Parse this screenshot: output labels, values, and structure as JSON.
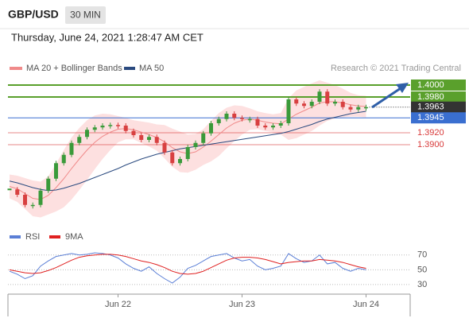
{
  "header": {
    "symbol": "GBP/USD",
    "interval": "30 MIN",
    "datetime": "Thursday, June 24, 2021 1:28:47 AM CET",
    "credit": "Research © 2021 Trading Central"
  },
  "chart_data": {
    "type": "candlestick",
    "categories": [
      null,
      null,
      null,
      null,
      null,
      null,
      null,
      null,
      null,
      null,
      null,
      null,
      null,
      null,
      "Jun 22",
      null,
      null,
      null,
      null,
      null,
      null,
      null,
      null,
      null,
      null,
      null,
      null,
      null,
      null,
      null,
      "Jun 23",
      null,
      null,
      null,
      null,
      null,
      null,
      null,
      null,
      null,
      null,
      null,
      null,
      null,
      null,
      null,
      "Jun 24"
    ],
    "price": {
      "up_color": "#3a9a3a",
      "down_color": "#d84040",
      "values": [
        1.3825,
        1.3816,
        1.3799,
        1.3799,
        1.3823,
        1.3843,
        1.3869,
        1.3883,
        1.3903,
        1.3913,
        1.3925,
        1.3929,
        1.3932,
        1.3933,
        1.3932,
        1.3923,
        1.3916,
        1.3908,
        1.3913,
        1.3903,
        1.3887,
        1.3869,
        1.3876,
        1.3896,
        1.3903,
        1.3919,
        1.3936,
        1.3943,
        1.3952,
        1.3945,
        1.3943,
        1.3943,
        1.3932,
        1.3929,
        1.3932,
        1.3936,
        1.3976,
        1.3969,
        1.3965,
        1.3972,
        1.3989,
        1.3969,
        1.3972,
        1.3963,
        1.3959,
        1.3963,
        1.3963
      ]
    },
    "series": [
      {
        "name": "MA 20 + Bollinger Bands",
        "color": "#f08a8a",
        "band_color": "#fde0e0",
        "values": [
          1.383,
          1.3826,
          1.3818,
          1.381,
          1.3808,
          1.3815,
          1.3828,
          1.3843,
          1.386,
          1.3876,
          1.3891,
          1.3904,
          1.3914,
          1.3921,
          1.3926,
          1.3927,
          1.3925,
          1.3921,
          1.3917,
          1.3912,
          1.3905,
          1.3895,
          1.3888,
          1.3885,
          1.3888,
          1.3896,
          1.3906,
          1.3917,
          1.3928,
          1.3936,
          1.3941,
          1.3943,
          1.3941,
          1.3938,
          1.3936,
          1.3935,
          1.3943,
          1.3951,
          1.3957,
          1.3963,
          1.397,
          1.3972,
          1.3972,
          1.397,
          1.3967,
          1.3965,
          1.3964
        ],
        "upper": [
          1.385,
          1.3848,
          1.3844,
          1.384,
          1.3838,
          1.3847,
          1.3868,
          1.3891,
          1.3912,
          1.3928,
          1.3941,
          1.3949,
          1.3952,
          1.3951,
          1.3948,
          1.3945,
          1.3941,
          1.3939,
          1.3937,
          1.3934,
          1.3933,
          1.3927,
          1.3922,
          1.3917,
          1.3918,
          1.3926,
          1.394,
          1.3953,
          1.3962,
          1.3966,
          1.3965,
          1.3961,
          1.3956,
          1.3953,
          1.3951,
          1.3953,
          1.3978,
          1.3991,
          1.3997,
          1.4003,
          1.4008,
          1.4004,
          1.4,
          1.3994,
          1.3987,
          1.3983,
          1.3982
        ],
        "lower": [
          1.381,
          1.3804,
          1.3792,
          1.378,
          1.3778,
          1.3783,
          1.3788,
          1.3795,
          1.3808,
          1.3824,
          1.3841,
          1.3859,
          1.3876,
          1.3891,
          1.3904,
          1.3909,
          1.3909,
          1.3903,
          1.3897,
          1.389,
          1.3877,
          1.3863,
          1.3854,
          1.3853,
          1.3858,
          1.3866,
          1.3872,
          1.3881,
          1.3894,
          1.3906,
          1.3917,
          1.3925,
          1.3926,
          1.3923,
          1.3921,
          1.3917,
          1.3908,
          1.3911,
          1.3917,
          1.3923,
          1.3932,
          1.394,
          1.3944,
          1.3946,
          1.3947,
          1.3947,
          1.3946
        ]
      },
      {
        "name": "MA 50",
        "color": "#2a4a7f",
        "values": [
          1.3839,
          1.3836,
          1.3832,
          1.3828,
          1.3825,
          1.3823,
          1.3824,
          1.3827,
          1.3831,
          1.3835,
          1.384,
          1.3845,
          1.385,
          1.3855,
          1.386,
          1.3866,
          1.3871,
          1.3876,
          1.388,
          1.3884,
          1.3887,
          1.389,
          1.3893,
          1.3895,
          1.3897,
          1.3899,
          1.3901,
          1.3903,
          1.3905,
          1.3907,
          1.3909,
          1.3911,
          1.3913,
          1.3915,
          1.3917,
          1.3919,
          1.3922,
          1.3926,
          1.393,
          1.3934,
          1.3939,
          1.3943,
          1.3946,
          1.3949,
          1.3952,
          1.3954,
          1.3956
        ]
      }
    ],
    "ylim": [
      1.3775,
      1.4016
    ],
    "levels": [
      {
        "value": 1.4,
        "label": "1.4000",
        "color": "#5aa02c",
        "style": "box"
      },
      {
        "value": 1.398,
        "label": "1.3980",
        "color": "#5aa02c",
        "style": "box"
      },
      {
        "value": 1.3963,
        "label": "1.3963",
        "color": "#333333",
        "style": "current"
      },
      {
        "value": 1.3945,
        "label": "1.3945",
        "color": "#3a6fd0",
        "style": "box"
      },
      {
        "value": 1.392,
        "label": "1.3920",
        "color": "#d83a3a",
        "style": "text"
      },
      {
        "value": 1.39,
        "label": "1.3900",
        "color": "#d83a3a",
        "style": "text"
      }
    ],
    "indicator": {
      "ylim": [
        17,
        87
      ],
      "yticks": [
        30,
        50,
        70
      ],
      "series": [
        {
          "name": "RSI",
          "color": "#5b7fd6",
          "values": [
            48,
            44,
            38,
            42,
            55,
            62,
            68,
            70,
            72,
            70,
            71,
            73,
            72,
            70,
            66,
            58,
            52,
            48,
            54,
            45,
            38,
            32,
            40,
            52,
            56,
            62,
            68,
            70,
            72,
            66,
            62,
            64,
            55,
            50,
            52,
            55,
            72,
            65,
            60,
            62,
            70,
            58,
            60,
            52,
            48,
            52,
            50
          ]
        },
        {
          "name": "9MA",
          "color": "#e02020",
          "values": [
            50,
            48,
            46,
            45,
            46,
            49,
            53,
            58,
            63,
            67,
            69,
            70,
            71,
            71,
            70,
            68,
            65,
            62,
            60,
            57,
            53,
            48,
            45,
            44,
            45,
            48,
            53,
            58,
            63,
            66,
            67,
            67,
            66,
            64,
            61,
            58,
            60,
            61,
            62,
            62,
            64,
            63,
            62,
            60,
            57,
            54,
            52
          ]
        }
      ]
    }
  }
}
